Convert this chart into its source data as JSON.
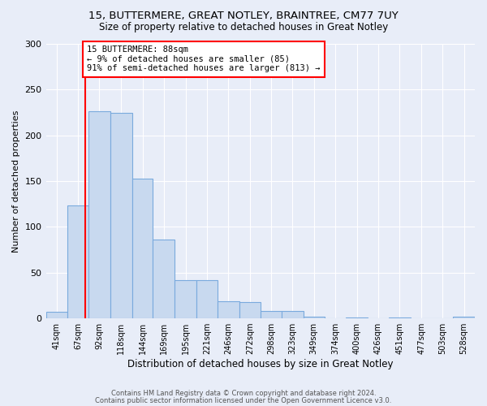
{
  "title": "15, BUTTERMERE, GREAT NOTLEY, BRAINTREE, CM77 7UY",
  "subtitle": "Size of property relative to detached houses in Great Notley",
  "xlabel": "Distribution of detached houses by size in Great Notley",
  "ylabel": "Number of detached properties",
  "bar_edges": [
    41,
    67,
    92,
    118,
    144,
    169,
    195,
    221,
    246,
    272,
    298,
    323,
    349,
    374,
    400,
    426,
    451,
    477,
    503,
    528,
    554
  ],
  "bar_heights": [
    7,
    123,
    226,
    225,
    153,
    86,
    42,
    42,
    19,
    18,
    8,
    8,
    2,
    0,
    1,
    0,
    1,
    0,
    0,
    2
  ],
  "bar_facecolor": "#c8d9ef",
  "bar_edgecolor": "#7aaadd",
  "property_line_x": 88,
  "annotation_text": "15 BUTTERMERE: 88sqm\n← 9% of detached houses are smaller (85)\n91% of semi-detached houses are larger (813) →",
  "annotation_box_facecolor": "white",
  "annotation_box_edgecolor": "red",
  "vline_color": "red",
  "ylim": [
    0,
    300
  ],
  "yticks": [
    0,
    50,
    100,
    150,
    200,
    250,
    300
  ],
  "background_color": "#e8edf8",
  "plot_bg_color": "#e8edf8",
  "grid_color": "white",
  "footer_line1": "Contains HM Land Registry data © Crown copyright and database right 2024.",
  "footer_line2": "Contains public sector information licensed under the Open Government Licence v3.0."
}
